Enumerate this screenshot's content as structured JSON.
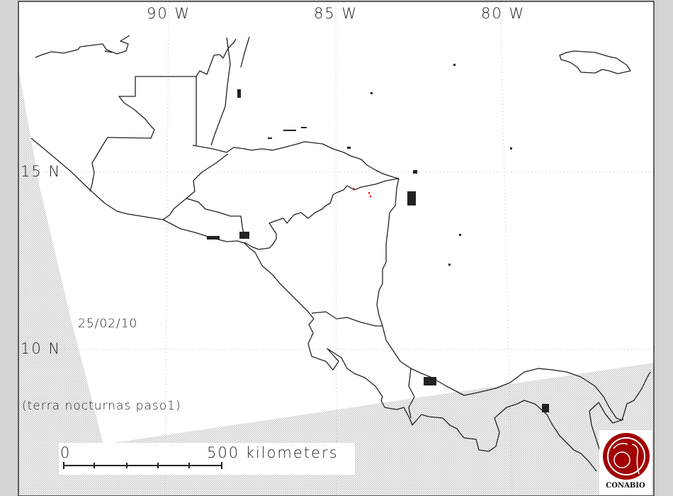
{
  "map": {
    "longitude_labels": [
      "90 W",
      "85 W",
      "80 W"
    ],
    "latitude_labels": [
      "15 N",
      "10 N"
    ],
    "date": "25/02/10",
    "pass_caption": "(terra nocturnas paso1)",
    "scale": {
      "start_label": "0",
      "end_label": "500 kilometers"
    },
    "logo_text": "CONABIO",
    "hotspots": [
      {
        "lon": -84.48,
        "lat": 14.54
      },
      {
        "lon": -84.02,
        "lat": 14.42
      },
      {
        "lon": -83.98,
        "lat": 14.32
      }
    ]
  },
  "colors": {
    "frame": "#d4d4d4",
    "land_outline": "#222222",
    "hotspot": "#ff2020",
    "logo": "#a00000",
    "no_coverage_hatch": "#c8c8c8"
  }
}
